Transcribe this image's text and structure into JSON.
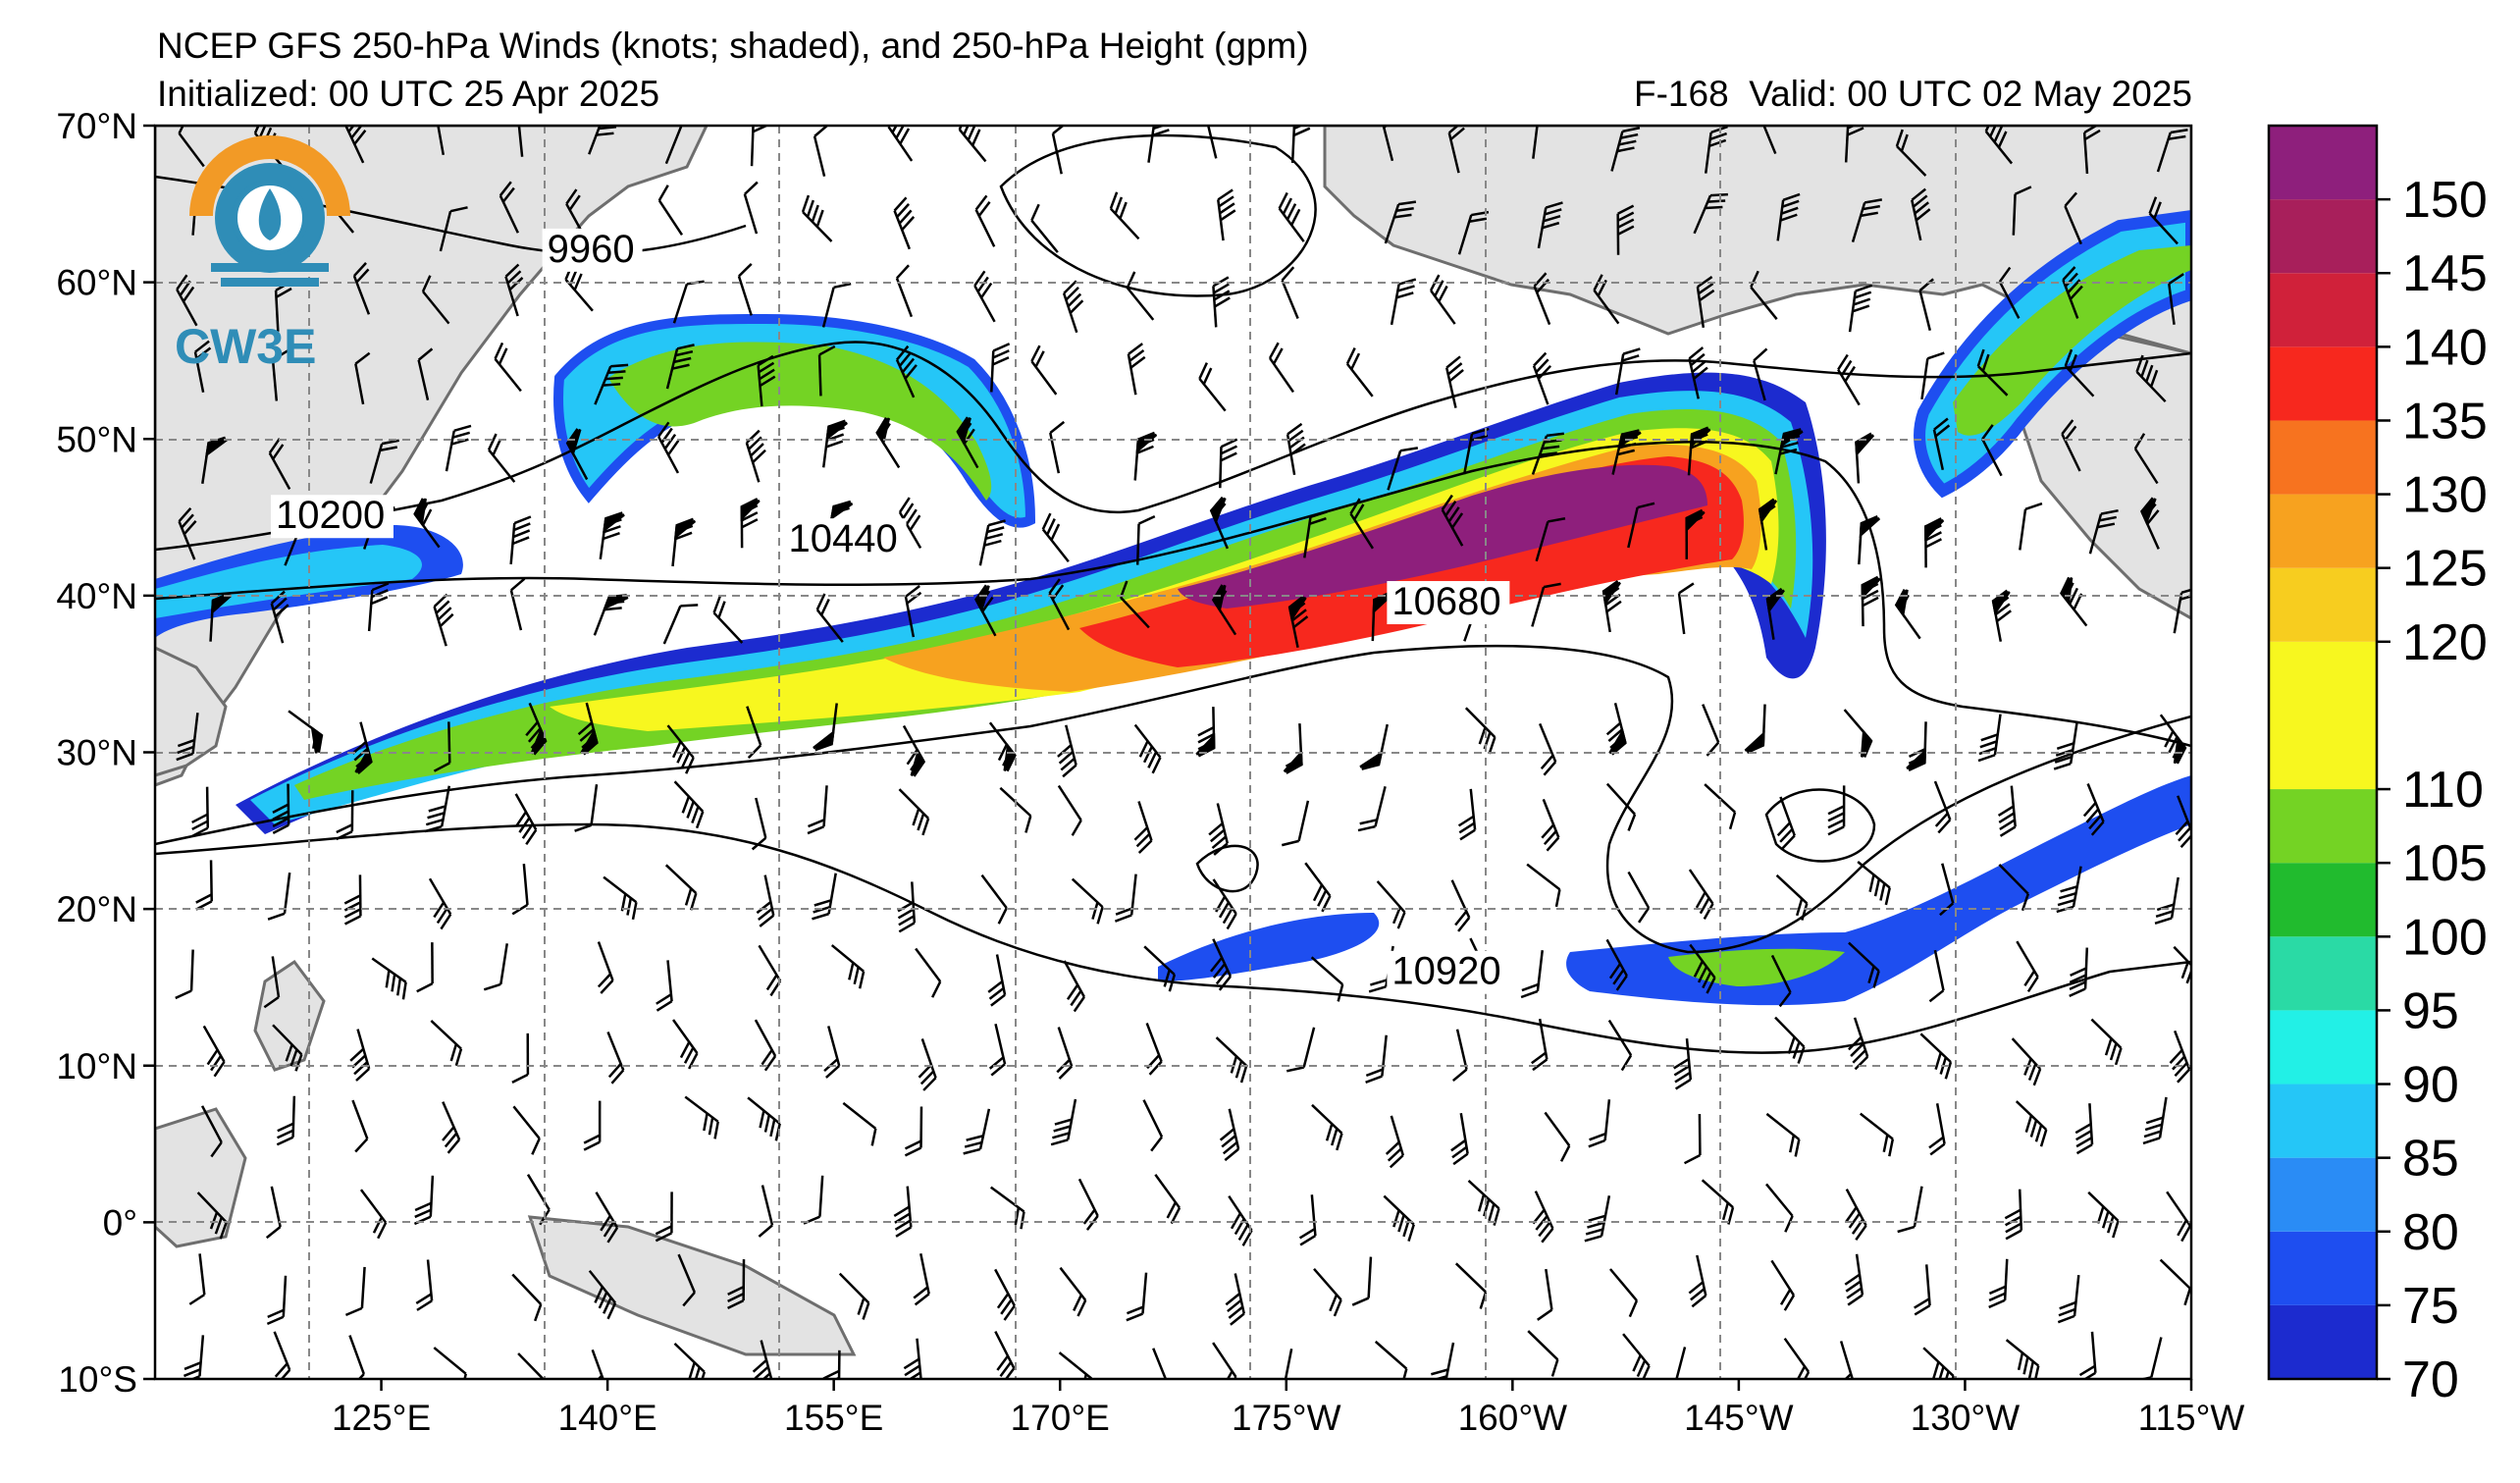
{
  "header": {
    "title": "NCEP GFS 250-hPa Winds (knots; shaded), and 250-hPa Height (gpm)",
    "initialized": "Initialized: 00 UTC 25 Apr 2025",
    "forecast": "F-168",
    "valid": "Valid: 00 UTC 02 May 2025"
  },
  "logo": {
    "text": "CW3E",
    "colors": {
      "orange": "#f29a26",
      "blue": "#2f8db7"
    }
  },
  "map": {
    "extent": {
      "lon_min": 110,
      "lon_max": 245,
      "lat_min": -10,
      "lat_max": 70
    },
    "lat_ticks": [
      {
        "value": 70,
        "label": "70°N"
      },
      {
        "value": 60,
        "label": "60°N"
      },
      {
        "value": 50,
        "label": "50°N"
      },
      {
        "value": 40,
        "label": "40°N"
      },
      {
        "value": 30,
        "label": "30°N"
      },
      {
        "value": 20,
        "label": "20°N"
      },
      {
        "value": 10,
        "label": "10°N"
      },
      {
        "value": 0,
        "label": "0°"
      },
      {
        "value": -10,
        "label": "10°S"
      }
    ],
    "lon_ticks": [
      {
        "value": 125,
        "label": "125°E"
      },
      {
        "value": 140,
        "label": "140°E"
      },
      {
        "value": 155,
        "label": "155°E"
      },
      {
        "value": 170,
        "label": "170°E"
      },
      {
        "value": 185,
        "label": "175°W"
      },
      {
        "value": 200,
        "label": "160°W"
      },
      {
        "value": 215,
        "label": "145°W"
      },
      {
        "value": 230,
        "label": "130°W"
      },
      {
        "value": 245,
        "label": "115°W"
      }
    ],
    "gridlines": true,
    "land_color": "#e3e3e3",
    "coast_color": "#6e6e6e",
    "contour_labels": [
      {
        "text": "9960",
        "lon": 136,
        "lat": 61.3
      },
      {
        "text": "10200",
        "lon": 118,
        "lat": 44.3
      },
      {
        "text": "10440",
        "lon": 152,
        "lat": 42.8
      },
      {
        "text": "10680",
        "lon": 192,
        "lat": 38.8
      },
      {
        "text": "10920",
        "lon": 192,
        "lat": 15.2
      }
    ]
  },
  "colorbar": {
    "levels": [
      70,
      75,
      80,
      85,
      90,
      95,
      100,
      105,
      110,
      120,
      125,
      130,
      135,
      140,
      145,
      150,
      155
    ],
    "labels": [
      "70",
      "75",
      "80",
      "85",
      "90",
      "95",
      "100",
      "105",
      "110",
      "120",
      "125",
      "130",
      "135",
      "140",
      "145",
      "150"
    ],
    "colors": [
      "#1c2bcf",
      "#1e4ef0",
      "#2a8cf5",
      "#25c6f7",
      "#22f0e6",
      "#2adaa5",
      "#21bb2e",
      "#74d324",
      "#f7f71f",
      "#f7cd1f",
      "#f7a21f",
      "#f7731f",
      "#f7281e",
      "#d0213a",
      "#a81f5b",
      "#8e1f7c",
      "#731d8e"
    ]
  }
}
